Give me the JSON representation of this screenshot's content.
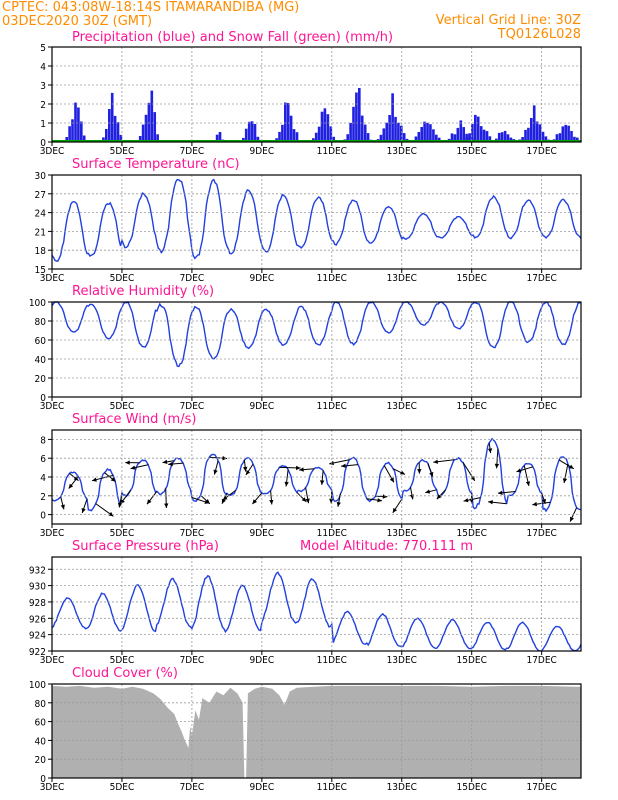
{
  "header": {
    "line1_left": "CPTEC:   043:08W-18:14S   ITAMARANDIBA (MG)",
    "line2_left": "03DEC2020 30Z (GMT)",
    "line1_right": "Vertical Grid Line: 30Z",
    "line2_right": "TQ0126L028"
  },
  "x_axis": {
    "ticks": [
      "3DEC",
      "5DEC",
      "7DEC",
      "9DEC",
      "11DEC",
      "13DEC",
      "15DEC",
      "17DEC"
    ],
    "tick_days": [
      3,
      5,
      7,
      9,
      11,
      13,
      15,
      17
    ],
    "range_days": [
      3,
      18.125
    ]
  },
  "colors": {
    "line": "#2040e0",
    "snow": "#00a000",
    "cloud": "#b0b0b0",
    "title": "#ff1493",
    "header": "#ff8c00"
  },
  "chart_data": [
    {
      "type": "bar",
      "title": "Precipitation (blue) and Snow Fall (green) (mm/h)",
      "ylim": [
        0,
        5
      ],
      "yticks": [
        0,
        1,
        2,
        3,
        4,
        5
      ],
      "series": [
        {
          "name": "Precipitation",
          "color": "#2020e0",
          "bursts": [
            {
              "x": 3.65,
              "peak": 3.4,
              "width": 0.35
            },
            {
              "x": 4.7,
              "peak": 3.3,
              "width": 0.35
            },
            {
              "x": 5.75,
              "peak": 3.9,
              "width": 0.35
            },
            {
              "x": 7.75,
              "peak": 1.0,
              "width": 0.15
            },
            {
              "x": 8.65,
              "peak": 2.1,
              "width": 0.3
            },
            {
              "x": 9.7,
              "peak": 3.1,
              "width": 0.4
            },
            {
              "x": 10.75,
              "peak": 2.6,
              "width": 0.4
            },
            {
              "x": 11.7,
              "peak": 3.5,
              "width": 0.45
            },
            {
              "x": 12.7,
              "peak": 2.9,
              "width": 0.5
            },
            {
              "x": 13.7,
              "peak": 1.8,
              "width": 0.5
            },
            {
              "x": 14.65,
              "peak": 1.4,
              "width": 0.5
            },
            {
              "x": 15.15,
              "peak": 2.0,
              "width": 0.5
            },
            {
              "x": 15.9,
              "peak": 1.1,
              "width": 0.4
            },
            {
              "x": 16.75,
              "peak": 2.5,
              "width": 0.5
            },
            {
              "x": 17.65,
              "peak": 1.5,
              "width": 0.5
            }
          ]
        },
        {
          "name": "Snow Fall",
          "color": "#00a000",
          "value": 0
        }
      ]
    },
    {
      "type": "line",
      "title": "Surface Temperature (nC)",
      "ylim": [
        15,
        30
      ],
      "yticks": [
        15,
        18,
        21,
        24,
        27,
        30
      ],
      "daily": [
        {
          "day": 3,
          "min": 16.2,
          "max": 25.8
        },
        {
          "day": 4,
          "min": 17.0,
          "max": 25.5
        },
        {
          "day": 5,
          "min": 18.5,
          "max": 27.0
        },
        {
          "day": 6,
          "min": 17.8,
          "max": 29.5
        },
        {
          "day": 7,
          "min": 16.8,
          "max": 29.0
        },
        {
          "day": 8,
          "min": 17.5,
          "max": 27.5
        },
        {
          "day": 9,
          "min": 17.8,
          "max": 26.8
        },
        {
          "day": 10,
          "min": 18.5,
          "max": 26.5
        },
        {
          "day": 11,
          "min": 19.0,
          "max": 26.0
        },
        {
          "day": 12,
          "min": 19.2,
          "max": 25.0
        },
        {
          "day": 13,
          "min": 19.8,
          "max": 23.8
        },
        {
          "day": 14,
          "min": 20.0,
          "max": 23.3
        },
        {
          "day": 15,
          "min": 20.0,
          "max": 26.5
        },
        {
          "day": 16,
          "min": 20.0,
          "max": 26.0
        },
        {
          "day": 17,
          "min": 20.0,
          "max": 26.0
        }
      ]
    },
    {
      "type": "line",
      "title": "Relative Humidity (%)",
      "ylim": [
        0,
        100
      ],
      "yticks": [
        0,
        20,
        40,
        60,
        80,
        100
      ],
      "daily": [
        {
          "day": 3,
          "min": 68,
          "max": 100
        },
        {
          "day": 4,
          "min": 62,
          "max": 98
        },
        {
          "day": 5,
          "min": 52,
          "max": 100
        },
        {
          "day": 6,
          "min": 33,
          "max": 97
        },
        {
          "day": 7,
          "min": 40,
          "max": 95
        },
        {
          "day": 8,
          "min": 52,
          "max": 92
        },
        {
          "day": 9,
          "min": 55,
          "max": 92
        },
        {
          "day": 10,
          "min": 55,
          "max": 95
        },
        {
          "day": 11,
          "min": 56,
          "max": 100
        },
        {
          "day": 12,
          "min": 68,
          "max": 100
        },
        {
          "day": 13,
          "min": 76,
          "max": 100
        },
        {
          "day": 14,
          "min": 72,
          "max": 100
        },
        {
          "day": 15,
          "min": 52,
          "max": 100
        },
        {
          "day": 16,
          "min": 58,
          "max": 100
        },
        {
          "day": 17,
          "min": 55,
          "max": 100
        }
      ]
    },
    {
      "type": "line",
      "title": "Surface Wind (m/s)",
      "ylim": [
        -1,
        9
      ],
      "yticks": [
        0,
        2,
        4,
        6,
        8
      ],
      "daily": [
        {
          "day": 3,
          "min": 1.5,
          "max": 4.5
        },
        {
          "day": 4,
          "min": 0.5,
          "max": 4.8
        },
        {
          "day": 5,
          "min": 2.0,
          "max": 5.8
        },
        {
          "day": 6,
          "min": 2.2,
          "max": 6.0
        },
        {
          "day": 7,
          "min": 1.5,
          "max": 6.5
        },
        {
          "day": 8,
          "min": 2.0,
          "max": 6.0
        },
        {
          "day": 9,
          "min": 2.2,
          "max": 5.2
        },
        {
          "day": 10,
          "min": 2.5,
          "max": 5.0
        },
        {
          "day": 11,
          "min": 1.5,
          "max": 6.0
        },
        {
          "day": 12,
          "min": 1.5,
          "max": 5.5
        },
        {
          "day": 13,
          "min": 2.5,
          "max": 5.8
        },
        {
          "day": 14,
          "min": 2.0,
          "max": 6.0
        },
        {
          "day": 15,
          "min": 0.8,
          "max": 8.0
        },
        {
          "day": 16,
          "min": 2.0,
          "max": 5.5
        },
        {
          "day": 17,
          "min": 0.5,
          "max": 6.2
        }
      ]
    },
    {
      "type": "line",
      "title": "Surface Pressure (hPa)",
      "annotation": "Model Altitude: 770.111 m",
      "ylim": [
        922,
        933.5
      ],
      "yticks": [
        922,
        924,
        926,
        928,
        930,
        932
      ],
      "daily": [
        {
          "day": 3,
          "min": 924.8,
          "max": 928.5
        },
        {
          "day": 4,
          "min": 924.5,
          "max": 929.0
        },
        {
          "day": 5,
          "min": 924.5,
          "max": 930.0
        },
        {
          "day": 6,
          "min": 925.0,
          "max": 930.8
        },
        {
          "day": 7,
          "min": 924.5,
          "max": 931.2
        },
        {
          "day": 8,
          "min": 924.5,
          "max": 930.0
        },
        {
          "day": 9,
          "min": 925.5,
          "max": 931.5
        },
        {
          "day": 10,
          "min": 925.0,
          "max": 930.8
        },
        {
          "day": 11,
          "min": 922.8,
          "max": 926.8
        },
        {
          "day": 12,
          "min": 922.5,
          "max": 926.5
        },
        {
          "day": 13,
          "min": 922.3,
          "max": 926.0
        },
        {
          "day": 14,
          "min": 922.3,
          "max": 925.8
        },
        {
          "day": 15,
          "min": 922.2,
          "max": 925.5
        },
        {
          "day": 16,
          "min": 922.0,
          "max": 925.5
        },
        {
          "day": 17,
          "min": 922.0,
          "max": 925.0
        }
      ]
    },
    {
      "type": "area",
      "title": "Cloud Cover (%)",
      "ylim": [
        0,
        100
      ],
      "yticks": [
        0,
        20,
        40,
        60,
        80,
        100
      ],
      "points": [
        [
          3.0,
          98
        ],
        [
          3.4,
          97
        ],
        [
          3.8,
          98
        ],
        [
          4.2,
          96
        ],
        [
          4.6,
          97
        ],
        [
          5.0,
          95
        ],
        [
          5.3,
          97
        ],
        [
          5.6,
          95
        ],
        [
          5.9,
          90
        ],
        [
          6.1,
          84
        ],
        [
          6.3,
          75
        ],
        [
          6.5,
          68
        ],
        [
          6.6,
          58
        ],
        [
          6.7,
          50
        ],
        [
          6.8,
          40
        ],
        [
          6.9,
          32
        ],
        [
          6.95,
          55
        ],
        [
          7.0,
          45
        ],
        [
          7.1,
          72
        ],
        [
          7.2,
          62
        ],
        [
          7.3,
          85
        ],
        [
          7.5,
          80
        ],
        [
          7.7,
          92
        ],
        [
          7.9,
          88
        ],
        [
          8.1,
          96
        ],
        [
          8.3,
          90
        ],
        [
          8.45,
          80
        ],
        [
          8.5,
          0
        ],
        [
          8.55,
          0
        ],
        [
          8.6,
          90
        ],
        [
          8.8,
          95
        ],
        [
          9.0,
          97
        ],
        [
          9.3,
          95
        ],
        [
          9.5,
          88
        ],
        [
          9.65,
          78
        ],
        [
          9.8,
          92
        ],
        [
          10.0,
          96
        ],
        [
          10.5,
          97
        ],
        [
          11.0,
          98
        ],
        [
          12.0,
          98
        ],
        [
          13.0,
          98
        ],
        [
          14.0,
          98
        ],
        [
          15.0,
          97
        ],
        [
          16.0,
          98
        ],
        [
          17.0,
          98
        ],
        [
          18.0,
          97
        ],
        [
          18.125,
          97
        ]
      ]
    }
  ]
}
